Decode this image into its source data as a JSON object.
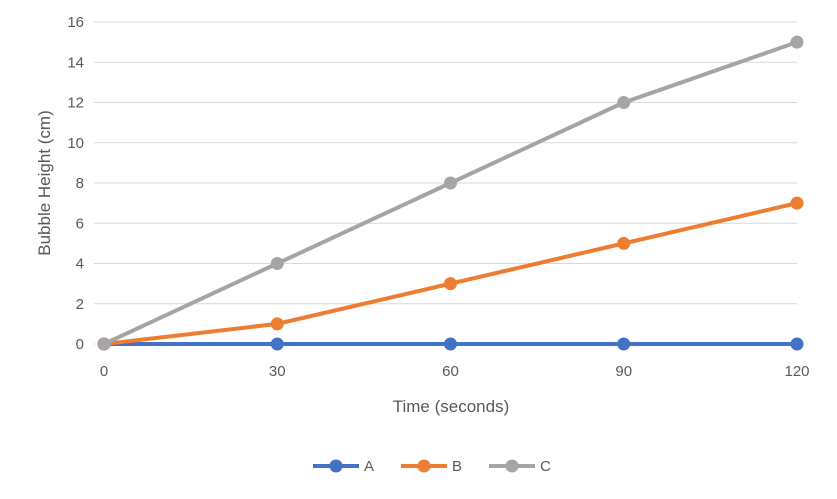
{
  "chart_data": {
    "type": "line",
    "title": "",
    "xlabel": "Time (seconds)",
    "ylabel": "Bubble Height (cm)",
    "x": [
      0,
      30,
      60,
      90,
      120
    ],
    "xlim": [
      0,
      120
    ],
    "ylim": [
      0,
      16
    ],
    "y_ticks": [
      0,
      2,
      4,
      6,
      8,
      10,
      12,
      14,
      16
    ],
    "grid": "horizontal",
    "legend_position": "bottom",
    "series": [
      {
        "name": "A",
        "color": "#4472C4",
        "values": [
          0,
          0,
          0,
          0,
          0
        ]
      },
      {
        "name": "B",
        "color": "#ED7D31",
        "values": [
          0,
          1,
          3,
          5,
          7
        ]
      },
      {
        "name": "C",
        "color": "#A5A5A5",
        "values": [
          0,
          4,
          8,
          12,
          15
        ]
      }
    ]
  }
}
